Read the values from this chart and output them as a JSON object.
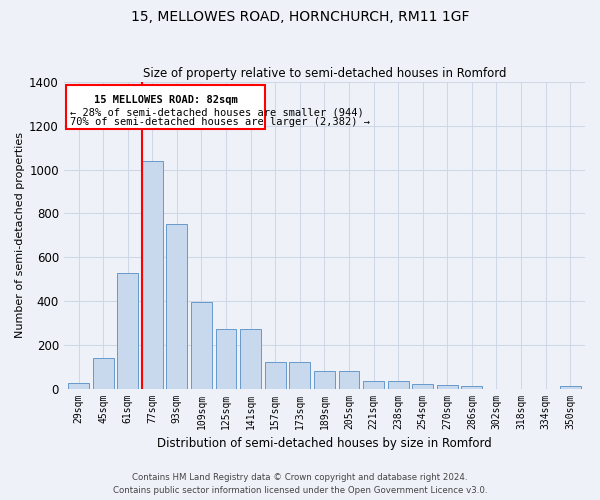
{
  "title": "15, MELLOWES ROAD, HORNCHURCH, RM11 1GF",
  "subtitle": "Size of property relative to semi-detached houses in Romford",
  "xlabel": "Distribution of semi-detached houses by size in Romford",
  "ylabel": "Number of semi-detached properties",
  "footnote1": "Contains HM Land Registry data © Crown copyright and database right 2024.",
  "footnote2": "Contains public sector information licensed under the Open Government Licence v3.0.",
  "bar_labels": [
    "29sqm",
    "45sqm",
    "61sqm",
    "77sqm",
    "93sqm",
    "109sqm",
    "125sqm",
    "141sqm",
    "157sqm",
    "173sqm",
    "189sqm",
    "205sqm",
    "221sqm",
    "238sqm",
    "254sqm",
    "270sqm",
    "286sqm",
    "302sqm",
    "318sqm",
    "334sqm",
    "350sqm"
  ],
  "bar_values": [
    25,
    140,
    530,
    1040,
    750,
    395,
    270,
    270,
    120,
    120,
    80,
    80,
    35,
    35,
    20,
    15,
    10,
    0,
    0,
    0,
    10
  ],
  "bar_color": "#c9d9ed",
  "bar_edge_color": "#6699cc",
  "grid_color": "#d0d8e8",
  "bg_color": "#eef2f8",
  "red_line_index": 3,
  "annotation_label": "15 MELLOWES ROAD: 82sqm",
  "annotation_smaller": "← 28% of semi-detached houses are smaller (944)",
  "annotation_larger": "70% of semi-detached houses are larger (2,382) →",
  "ylim": [
    0,
    1400
  ],
  "yticks": [
    0,
    200,
    400,
    600,
    800,
    1000,
    1200,
    1400
  ]
}
